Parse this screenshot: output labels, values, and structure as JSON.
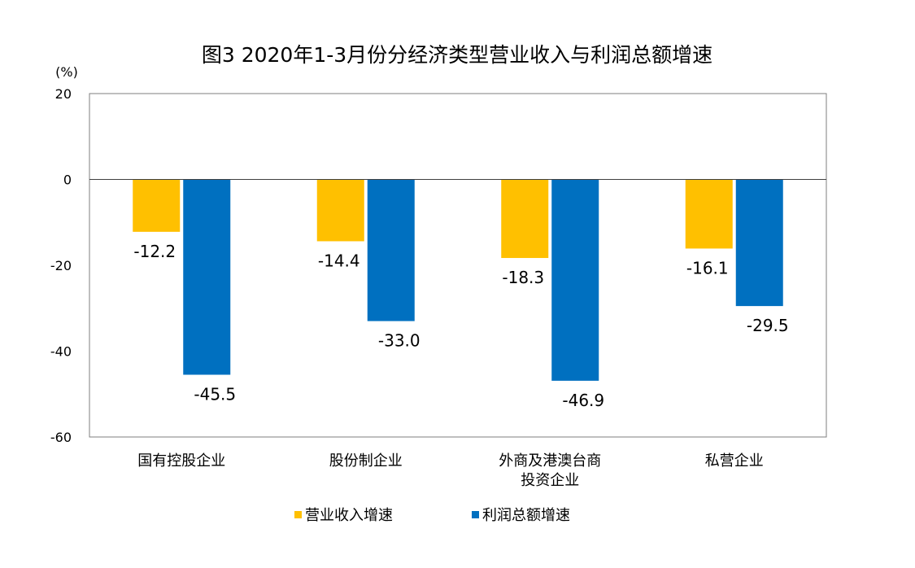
{
  "chart_data": {
    "type": "bar",
    "title": "图3  2020年1-3月份分经济类型营业收入与利润总额增速",
    "ylabel": "(%)",
    "xlabel": "",
    "ylim": [
      -60,
      20
    ],
    "yticks": [
      "20",
      "0",
      "-20",
      "-40",
      "-60"
    ],
    "grid": false,
    "legend_position": "bottom",
    "categories": [
      [
        "国有控股企业"
      ],
      [
        "股份制企业"
      ],
      [
        "外商及港澳台商",
        "投资企业"
      ],
      [
        "私营企业"
      ]
    ],
    "series": [
      {
        "name": "营业收入增速",
        "color": "#FFC000",
        "values": [
          -12.2,
          -14.4,
          -18.3,
          -16.1
        ],
        "labels": [
          "-12.2",
          "-14.4",
          "-18.3",
          "-16.1"
        ]
      },
      {
        "name": "利润总额增速",
        "color": "#0070C0",
        "values": [
          -45.5,
          -33.0,
          -46.9,
          -29.5
        ],
        "labels": [
          "-45.5",
          "-33.0",
          "-46.9",
          "-29.5"
        ]
      }
    ]
  }
}
